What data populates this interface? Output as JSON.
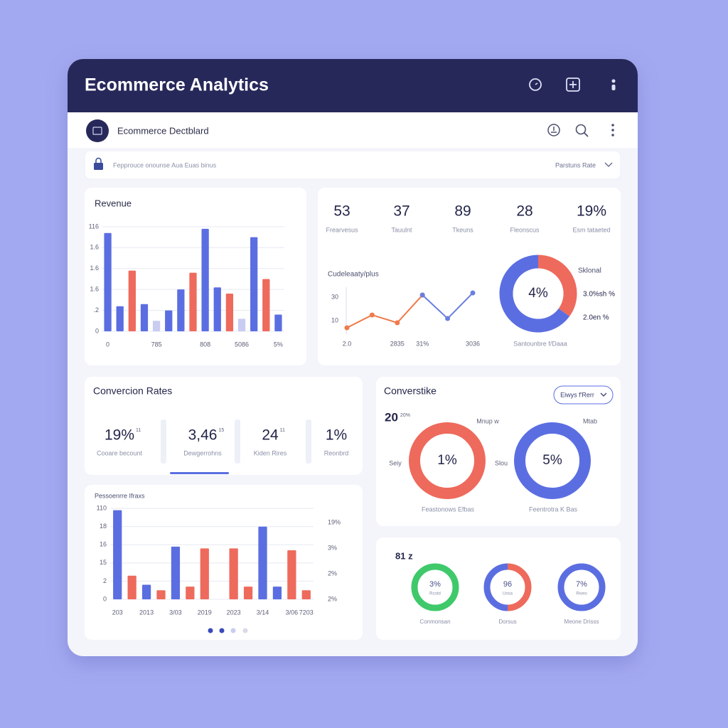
{
  "header": {
    "title": "Ecommerce Analytics"
  },
  "toolbar": {
    "title": "Ecommerce Dectblard"
  },
  "filter": {
    "label": "Fepprouce onounse Aua Euas binus",
    "sort": "Parstuns Rate"
  },
  "kpis": [
    {
      "value": "53",
      "label": "Frearvesus"
    },
    {
      "value": "37",
      "label": "Tauulnt"
    },
    {
      "value": "89",
      "label": "Tkeuns"
    },
    {
      "value": "28",
      "label": "Fleonscus"
    },
    {
      "value": "19%",
      "label": "Esm tataeted"
    }
  ],
  "conversion": {
    "title": "Convercion Rates",
    "items": [
      {
        "value": "19%",
        "sup": "11",
        "label": "Cooare becount"
      },
      {
        "value": "3,46",
        "sup": "15",
        "label": "Dewgerrohns"
      },
      {
        "value": "24",
        "sup": "11",
        "label": "Kiden Rires"
      },
      {
        "value": "1%",
        "label": "Reonbrd"
      }
    ]
  },
  "converstike": {
    "title": "Converstike",
    "dropdown": "Eiwys f'Rerr",
    "figure": "20",
    "figure_sup": "20%",
    "rings": [
      {
        "value": "1%",
        "top_label": "Mnup w",
        "side_label": "Seiy",
        "caption": "Feastonows Efbas",
        "color": "#ee6a5c"
      },
      {
        "value": "5%",
        "top_label": "Mtab",
        "side_label": "Slou",
        "caption": "Feentrotra K Bas",
        "color": "#5b6ee1"
      }
    ]
  },
  "mini": {
    "title": "81 z",
    "rings": [
      {
        "value": "3%",
        "sub": "Rcotd",
        "caption": "Conmonsan",
        "colors": [
          "#3fc96b"
        ]
      },
      {
        "value": "96",
        "sub": "Unsa",
        "caption": "Dorsus",
        "colors": [
          "#ee6a5c",
          "#5b6ee1"
        ]
      },
      {
        "value": "7%",
        "sub": "Riveo",
        "caption": "Meone Drisss",
        "colors": [
          "#5b6ee1"
        ]
      }
    ]
  },
  "chart_data": [
    {
      "type": "bar",
      "title": "Revenue",
      "categories": [
        "0",
        null,
        null,
        null,
        "785",
        null,
        null,
        null,
        "808",
        null,
        null,
        "5086",
        null,
        null,
        "5%"
      ],
      "values": [
        4.7,
        1.2,
        2.9,
        1.3,
        0.5,
        1.0,
        2.0,
        2.8,
        4.9,
        2.1,
        1.8,
        0.6,
        4.5,
        2.5,
        0.8
      ],
      "colors": [
        "#5b6ee1",
        "#5b6ee1",
        "#ee6a5c",
        "#5b6ee1",
        "#c9cdf2",
        "#5b6ee1",
        "#5b6ee1",
        "#ee6a5c",
        "#5b6ee1",
        "#5b6ee1",
        "#ee6a5c",
        "#c9cdf2",
        "#5b6ee1",
        "#ee6a5c",
        "#5b6ee1"
      ],
      "ylim": [
        0,
        5.2
      ],
      "yticks": [
        0,
        {
          "value": 1,
          "label": ".2"
        },
        {
          "value": 2,
          "label": "1.6"
        },
        {
          "value": 3,
          "label": "1.6"
        },
        {
          "value": 4,
          "label": "1.6"
        },
        {
          "value": 5,
          "label": "116"
        }
      ],
      "grid": true
    },
    {
      "type": "line",
      "title": "Cudeleaaty/plus",
      "categories": [
        "2.0",
        null,
        "2835",
        "31%",
        null,
        "3036"
      ],
      "series": [
        {
          "color": "#f07a4a",
          "values": [
            3.9,
            14.8,
            8.2,
            31.8,
            null,
            null
          ]
        },
        {
          "color": "#6b7fe0",
          "values": [
            null,
            null,
            null,
            31.8,
            11.8,
            33.6
          ]
        }
      ],
      "ylim": [
        0,
        40
      ],
      "yticks": [
        10,
        30
      ],
      "grid": false
    },
    {
      "type": "donut",
      "center_label": "4%",
      "legend_title": "Sklonal",
      "labels": [
        "3.0%sh %",
        "2.0en %"
      ],
      "values": [
        35,
        65
      ],
      "colors": [
        "#ee6a5c",
        "#5b6ee1"
      ],
      "caption": "Santounbre f/Daaa"
    },
    {
      "type": "bar",
      "title": "Pessoenrre Ifraxs",
      "categories": [
        "203",
        null,
        "2013",
        null,
        "3/03",
        null,
        "2019",
        null,
        "2023",
        null,
        "3/14",
        null,
        "3/06",
        "7203"
      ],
      "values": [
        4.9,
        1.3,
        0.8,
        0.5,
        2.9,
        0.7,
        2.8,
        null,
        2.8,
        0.7,
        4.0,
        0.7,
        2.7,
        0.5
      ],
      "colors": [
        "#5b6ee1",
        "#ee6a5c",
        "#5b6ee1",
        "#ee6a5c",
        "#5b6ee1",
        "#ee6a5c",
        "#ee6a5c",
        "#ee6a5c",
        "#ee6a5c",
        "#ee6a5c",
        "#5b6ee1",
        "#5b6ee1",
        "#ee6a5c",
        "#ee6a5c"
      ],
      "ylim": [
        0,
        5.2
      ],
      "yticks": [
        0,
        {
          "value": 1,
          "label": "2"
        },
        {
          "value": 2,
          "label": "15"
        },
        {
          "value": 3,
          "label": "16"
        },
        {
          "value": 4,
          "label": "18"
        },
        {
          "value": 5,
          "label": "110"
        }
      ],
      "y2lim": [
        0,
        3.7
      ],
      "y2ticks": [
        {
          "value": 0,
          "label": "2%"
        },
        {
          "value": 1,
          "label": "2%"
        },
        {
          "value": 2,
          "label": "3%"
        },
        {
          "value": 3,
          "label": "19%"
        }
      ],
      "grid": true
    }
  ]
}
